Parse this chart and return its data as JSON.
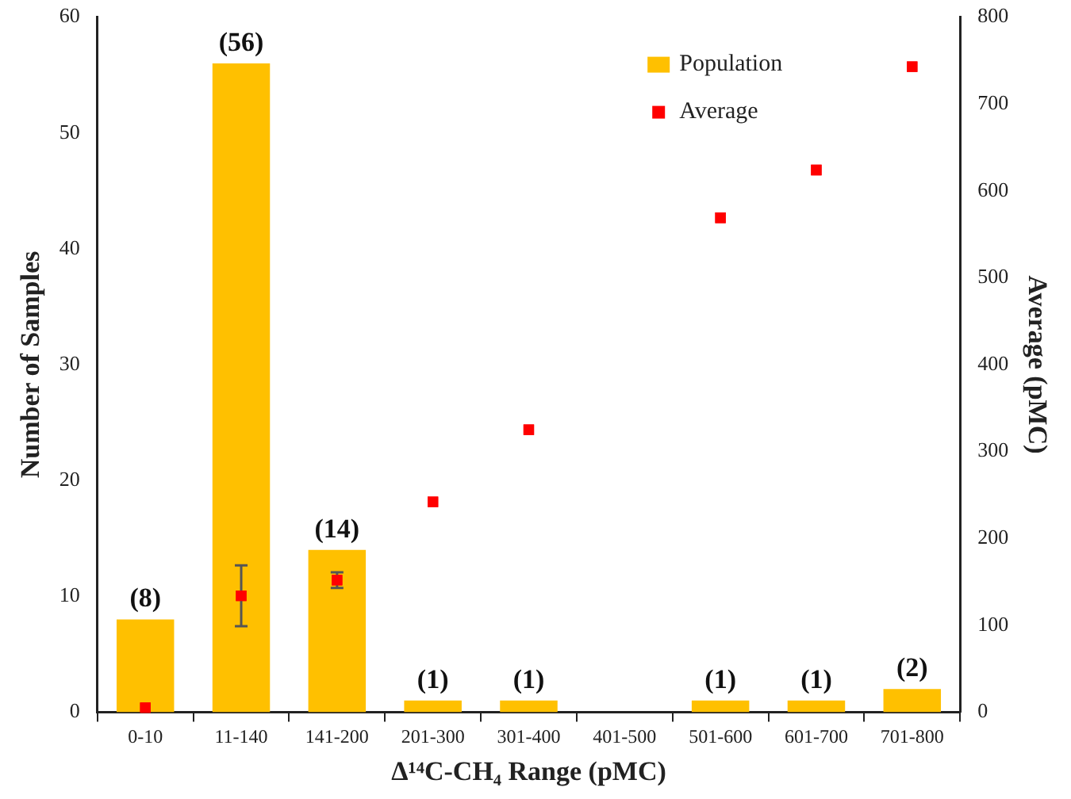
{
  "chart_data": {
    "type": "bar",
    "xlabel": "Δ¹⁴C-CH₄ Range (pMC)",
    "ylabel": "Number of Samples",
    "y2label": "Average (pMC)",
    "categories": [
      "0-10",
      "11-140",
      "141-200",
      "201-300",
      "301-400",
      "401-500",
      "501-600",
      "601-700",
      "701-800"
    ],
    "series": [
      {
        "name": "Population",
        "color": "#ffc000",
        "values": [
          8,
          56,
          14,
          1,
          1,
          null,
          1,
          1,
          2
        ],
        "value_labels": [
          "(8)",
          "(56)",
          "(14)",
          "(1)",
          "(1)",
          null,
          "(1)",
          "(1)",
          "(2)"
        ]
      },
      {
        "name": "Average",
        "type": "scatter",
        "axis": "y2",
        "color": "#ff0000",
        "marker": "square",
        "values": [
          5,
          134,
          152,
          242,
          325,
          null,
          569,
          624,
          743
        ],
        "errors": [
          null,
          [
            99,
            169
          ],
          [
            143,
            161
          ],
          null,
          null,
          null,
          null,
          null,
          null
        ]
      }
    ],
    "ylim": [
      0,
      60
    ],
    "yticks": [
      0,
      10,
      20,
      30,
      40,
      50,
      60
    ],
    "y2lim": [
      0,
      800
    ],
    "y2ticks": [
      0,
      100,
      200,
      300,
      400,
      500,
      600,
      700,
      800
    ],
    "grid": false,
    "legend": "top right"
  }
}
